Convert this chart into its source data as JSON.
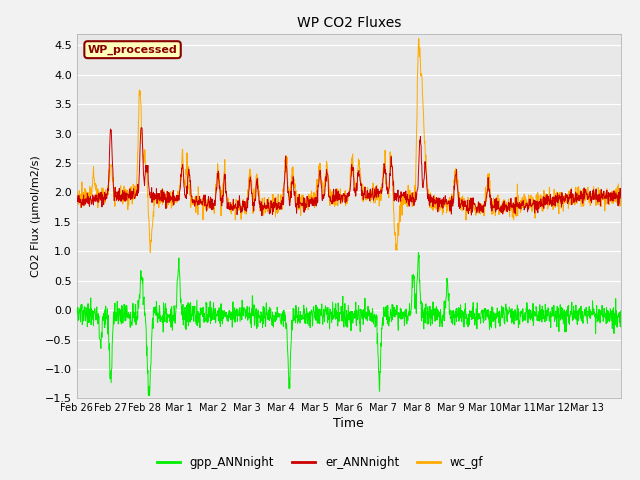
{
  "title": "WP CO2 Fluxes",
  "xlabel": "Time",
  "ylabel": "CO2 Flux (μmol/m2/s)",
  "ylim": [
    -1.5,
    4.7
  ],
  "colors": {
    "gpp": "#00ee00",
    "er": "#cc0000",
    "wc": "#ffaa00"
  },
  "legend_labels": [
    "gpp_ANNnight",
    "er_ANNnight",
    "wc_gf"
  ],
  "annotation_text": "WP_processed",
  "annotation_bg": "#ffffbb",
  "annotation_fg": "#880000",
  "plot_bg": "#e8e8e8",
  "fig_bg": "#f2f2f2",
  "grid_color": "#ffffff",
  "seed": 42,
  "n_points": 1600,
  "days": 16
}
